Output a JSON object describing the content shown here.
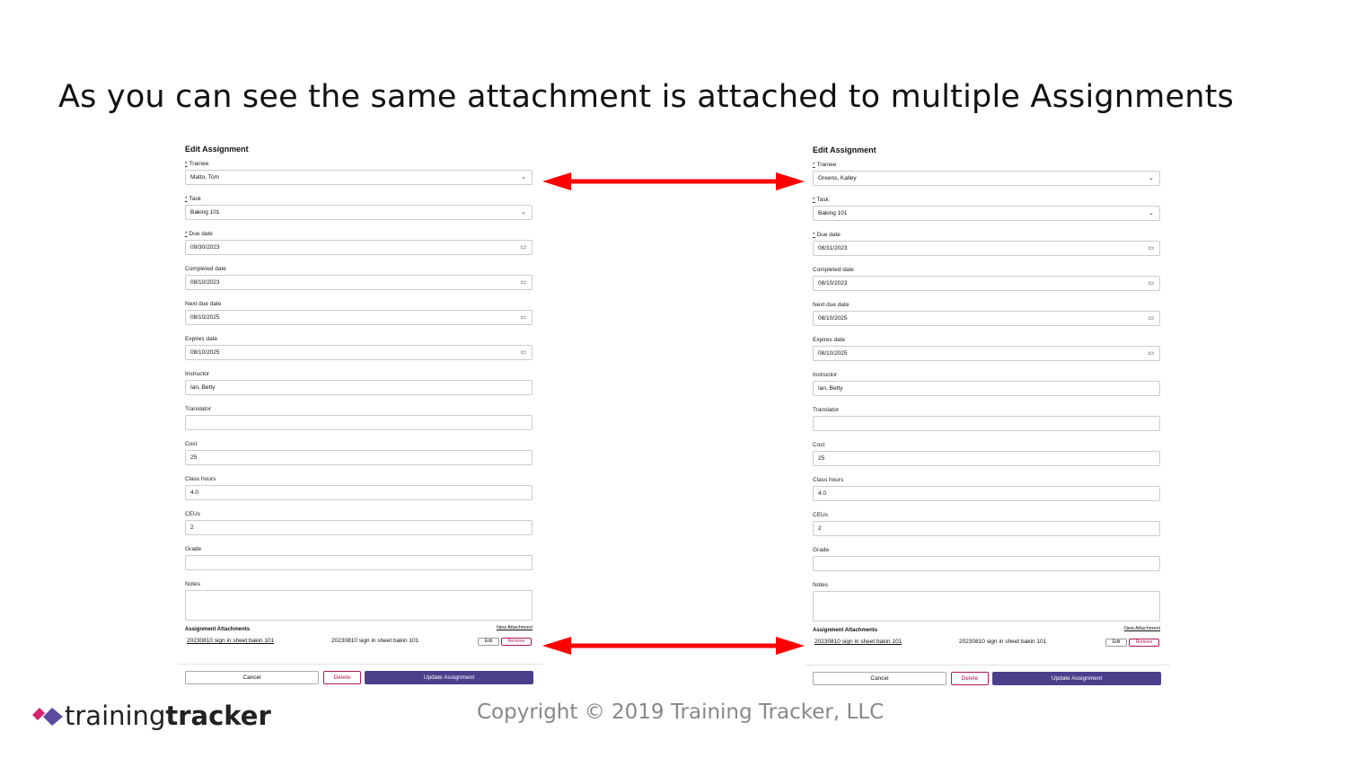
{
  "slide_title": "As you can see the same attachment is attached to multiple Assignments",
  "forms": [
    {
      "heading": "Edit Assignment",
      "fields": [
        {
          "required": "*",
          "label": "Trainee",
          "value": "Matto, Tom",
          "kind": "select"
        },
        {
          "required": "*",
          "label": "Task",
          "value": "Baking 101",
          "kind": "select"
        },
        {
          "required": "*",
          "label": "Due date",
          "value": "09/30/2023",
          "kind": "date"
        },
        {
          "label": "Completed date",
          "value": "08/10/2023",
          "kind": "date"
        },
        {
          "label": "Next due date",
          "value": "08/10/2025",
          "kind": "date"
        },
        {
          "label": "Expires date",
          "value": "08/10/2025",
          "kind": "date"
        },
        {
          "label": "Instructor",
          "value": "Ian, Betty",
          "kind": "text"
        },
        {
          "label": "Translator",
          "kind": "text"
        },
        {
          "label": "Cost",
          "value": "25",
          "kind": "text"
        },
        {
          "label": "Class hours",
          "value": "4.0",
          "kind": "text"
        },
        {
          "label": "CEUs",
          "value": "2",
          "kind": "text"
        },
        {
          "label": "Grade",
          "kind": "text"
        },
        {
          "label": "Notes",
          "kind": "textarea"
        }
      ],
      "attachments": {
        "heading": "Assignment Attachments",
        "new_link": "New Attachment",
        "rows": [
          {
            "link": "20230810 sign in sheet bakin 101",
            "file": "20230810 sign in sheet bakin 101",
            "edit": "Edit",
            "remove": "Remove"
          }
        ]
      },
      "buttons": {
        "cancel": "Cancel",
        "delete": "Delete",
        "submit": "Update Assignment"
      }
    },
    {
      "heading": "Edit Assignment",
      "fields": [
        {
          "required": "*",
          "label": "Trainee",
          "value": "Greens, Kalley",
          "kind": "select"
        },
        {
          "required": "*",
          "label": "Task",
          "value": "Baking 101",
          "kind": "select"
        },
        {
          "required": "*",
          "label": "Due date",
          "value": "08/31/2023",
          "kind": "date"
        },
        {
          "label": "Completed date",
          "value": "08/10/2023",
          "kind": "date"
        },
        {
          "label": "Next due date",
          "value": "08/10/2025",
          "kind": "date"
        },
        {
          "label": "Expires date",
          "value": "08/10/2025",
          "kind": "date"
        },
        {
          "label": "Instructor",
          "value": "Ian, Betty",
          "kind": "text"
        },
        {
          "label": "Translator",
          "kind": "text"
        },
        {
          "label": "Cost",
          "value": "25",
          "kind": "text"
        },
        {
          "label": "Class hours",
          "value": "4.0",
          "kind": "text"
        },
        {
          "label": "CEUs",
          "value": "2",
          "kind": "text"
        },
        {
          "label": "Grade",
          "kind": "text"
        },
        {
          "label": "Notes",
          "kind": "textarea"
        }
      ],
      "attachments": {
        "heading": "Assignment Attachments",
        "new_link": "New Attachment",
        "rows": [
          {
            "link": "20230810 sign in sheet bakin 101",
            "file": "20230810 sign in sheet bakin 101",
            "edit": "Edit",
            "remove": "Remove"
          }
        ]
      },
      "buttons": {
        "cancel": "Cancel",
        "delete": "Delete",
        "submit": "Update Assignment"
      }
    }
  ],
  "logo": {
    "light": "training",
    "bold": "tracker"
  },
  "footer": "Copyright © 2019 Training Tracker, LLC"
}
